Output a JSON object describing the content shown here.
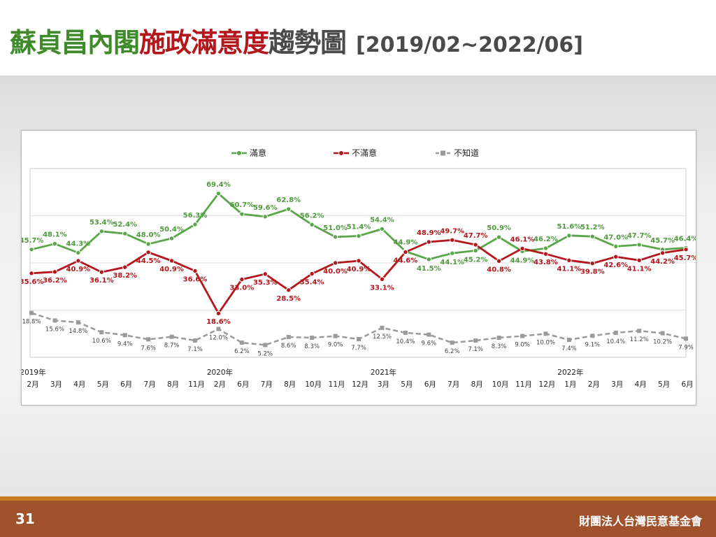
{
  "title": {
    "part1": "蘇貞昌內閣",
    "part2": "施政滿意度",
    "part3": "趨勢圖",
    "range": "[2019/02~2022/06]"
  },
  "footer": {
    "page_number": "31",
    "organization": "財團法人台灣民意基金會"
  },
  "chart_data": {
    "type": "line",
    "categories": [
      "2月",
      "3月",
      "4月",
      "5月",
      "6月",
      "7月",
      "8月",
      "11月",
      "2月",
      "6月",
      "7月",
      "8月",
      "10月",
      "11月",
      "12月",
      "3月",
      "5月",
      "6月",
      "7月",
      "8月",
      "10月",
      "11月",
      "12月",
      "1月",
      "2月",
      "3月",
      "4月",
      "5月",
      "6月"
    ],
    "years": [
      {
        "label": "2019年",
        "index": 0
      },
      {
        "label": "2020年",
        "index": 8
      },
      {
        "label": "2021年",
        "index": 15
      },
      {
        "label": "2022年",
        "index": 23
      }
    ],
    "ylim": [
      0,
      80
    ],
    "legend_position": "top-center",
    "grid": true,
    "series": [
      {
        "name": "滿意",
        "color": "#5aa64a",
        "label_color": "#4f9a3e",
        "dashed": false,
        "values": [
          45.7,
          48.1,
          44.3,
          53.4,
          52.4,
          48.0,
          50.4,
          56.3,
          69.4,
          60.7,
          59.6,
          62.8,
          56.2,
          51.0,
          51.4,
          54.4,
          44.9,
          41.5,
          44.1,
          45.2,
          50.9,
          44.9,
          46.2,
          51.6,
          51.2,
          47.0,
          47.7,
          45.7,
          46.4
        ],
        "labels": [
          "45.7%",
          "48.1%",
          "44.3%",
          "53.4%",
          "52.4%",
          "48.0%",
          "50.4%",
          "56.3%",
          "69.4%",
          "60.7%",
          "59.6%",
          "62.8%",
          "56.2%",
          "51.0%",
          "51.4%",
          "54.4%",
          "44.9%",
          "41.5%",
          "44.1%",
          "45.2%",
          "50.9%",
          "44.9%",
          "46.2%",
          "51.6%",
          "51.2%",
          "47.0%",
          "47.7%",
          "45.7%",
          "46.4%"
        ]
      },
      {
        "name": "不滿意",
        "color": "#b3171c",
        "label_color": "#b3171c",
        "dashed": false,
        "values": [
          35.6,
          36.2,
          40.9,
          36.1,
          38.2,
          44.5,
          40.9,
          36.6,
          18.6,
          33.0,
          35.3,
          28.5,
          35.4,
          40.0,
          40.9,
          33.1,
          44.6,
          48.9,
          49.7,
          47.7,
          40.8,
          46.1,
          43.8,
          41.1,
          39.8,
          42.6,
          41.1,
          44.2,
          45.7
        ],
        "labels": [
          "35.6%",
          "36.2%",
          "40.9%",
          "36.1%",
          "38.2%",
          "44.5%",
          "40.9%",
          "36.6%",
          "18.6%",
          "33.0%",
          "35.3%",
          "28.5%",
          "35.4%",
          "40.0%",
          "40.9%",
          "33.1%",
          "44.6%",
          "48.9%",
          "49.7%",
          "47.7%",
          "40.8%",
          "46.1%",
          "43.8%",
          "41.1%",
          "39.8%",
          "42.6%",
          "41.1%",
          "44.2%",
          "45.7%"
        ]
      },
      {
        "name": "不知道",
        "color": "#9a9a9a",
        "label_color": "#444444",
        "dashed": true,
        "values": [
          18.8,
          15.6,
          14.8,
          10.6,
          9.4,
          7.6,
          8.7,
          7.1,
          12.0,
          6.2,
          5.2,
          8.6,
          8.3,
          9.0,
          7.7,
          12.5,
          10.4,
          9.6,
          6.2,
          7.1,
          8.3,
          9.0,
          10.0,
          7.4,
          9.1,
          10.4,
          11.2,
          10.2,
          7.9
        ],
        "labels": [
          "18.8%",
          "15.6%",
          "14.8%",
          "10.6%",
          "9.4%",
          "7.6%",
          "8.7%",
          "7.1%",
          "12.0%",
          "6.2%",
          "5.2%",
          "8.6%",
          "8.3%",
          "9.0%",
          "7.7%",
          "12.5%",
          "10.4%",
          "9.6%",
          "6.2%",
          "7.1%",
          "8.3%",
          "9.0%",
          "10.0%",
          "7.4%",
          "9.1%",
          "10.4%",
          "11.2%",
          "10.2%",
          "7.9%"
        ]
      }
    ]
  }
}
